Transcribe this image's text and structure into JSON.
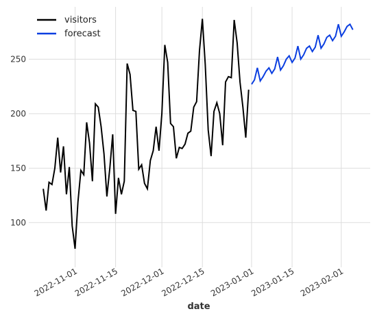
{
  "chart_data": {
    "type": "line",
    "xlabel": "date",
    "series": [
      {
        "name": "visitors",
        "color": "#000000",
        "x": [
          "2022-10-21",
          "2022-10-22",
          "2022-10-23",
          "2022-10-24",
          "2022-10-25",
          "2022-10-26",
          "2022-10-27",
          "2022-10-28",
          "2022-10-29",
          "2022-10-30",
          "2022-10-31",
          "2022-11-01",
          "2022-11-02",
          "2022-11-03",
          "2022-11-04",
          "2022-11-05",
          "2022-11-06",
          "2022-11-07",
          "2022-11-08",
          "2022-11-09",
          "2022-11-10",
          "2022-11-11",
          "2022-11-12",
          "2022-11-13",
          "2022-11-14",
          "2022-11-15",
          "2022-11-16",
          "2022-11-17",
          "2022-11-18",
          "2022-11-19",
          "2022-11-20",
          "2022-11-21",
          "2022-11-22",
          "2022-11-23",
          "2022-11-24",
          "2022-11-25",
          "2022-11-26",
          "2022-11-27",
          "2022-11-28",
          "2022-11-29",
          "2022-11-30",
          "2022-12-01",
          "2022-12-02",
          "2022-12-03",
          "2022-12-04",
          "2022-12-05",
          "2022-12-06",
          "2022-12-07",
          "2022-12-08",
          "2022-12-09",
          "2022-12-10",
          "2022-12-11",
          "2022-12-12",
          "2022-12-13",
          "2022-12-14",
          "2022-12-15",
          "2022-12-16",
          "2022-12-17",
          "2022-12-18",
          "2022-12-19",
          "2022-12-20",
          "2022-12-21",
          "2022-12-22",
          "2022-12-23",
          "2022-12-24",
          "2022-12-25",
          "2022-12-26",
          "2022-12-27",
          "2022-12-28",
          "2022-12-29",
          "2022-12-30",
          "2022-12-31"
        ],
        "values": [
          131,
          111,
          137,
          135,
          150,
          178,
          146,
          170,
          126,
          151,
          97,
          76,
          119,
          148,
          144,
          192,
          173,
          138,
          209,
          206,
          188,
          163,
          124,
          150,
          181,
          108,
          141,
          126,
          138,
          246,
          236,
          203,
          202,
          149,
          153,
          136,
          131,
          157,
          166,
          188,
          166,
          200,
          263,
          247,
          191,
          188,
          159,
          169,
          168,
          172,
          182,
          184,
          206,
          211,
          258,
          287,
          245,
          185,
          161,
          202,
          210,
          200,
          171,
          229,
          234,
          233,
          286,
          265,
          229,
          206,
          178,
          222
        ]
      },
      {
        "name": "forecast",
        "color": "#0a3ee0",
        "x": [
          "2023-01-01",
          "2023-01-02",
          "2023-01-03",
          "2023-01-04",
          "2023-01-05",
          "2023-01-06",
          "2023-01-07",
          "2023-01-08",
          "2023-01-09",
          "2023-01-10",
          "2023-01-11",
          "2023-01-12",
          "2023-01-13",
          "2023-01-14",
          "2023-01-15",
          "2023-01-16",
          "2023-01-17",
          "2023-01-18",
          "2023-01-19",
          "2023-01-20",
          "2023-01-21",
          "2023-01-22",
          "2023-01-23",
          "2023-01-24",
          "2023-01-25",
          "2023-01-26",
          "2023-01-27",
          "2023-01-28",
          "2023-01-29",
          "2023-01-30",
          "2023-01-31",
          "2023-02-01",
          "2023-02-02",
          "2023-02-03",
          "2023-02-04",
          "2023-02-05"
        ],
        "values": [
          227,
          231,
          242,
          230,
          234,
          239,
          242,
          237,
          241,
          252,
          240,
          244,
          250,
          253,
          247,
          251,
          262,
          250,
          254,
          260,
          262,
          257,
          261,
          272,
          260,
          264,
          270,
          272,
          267,
          271,
          282,
          271,
          275,
          280,
          282,
          277
        ]
      }
    ],
    "xlim": [
      "2022-10-16",
      "2023-02-11"
    ],
    "xticks": [
      "2022-11-01",
      "2022-11-15",
      "2022-12-01",
      "2022-12-15",
      "2023-01-01",
      "2023-01-15",
      "2023-02-01"
    ],
    "ylim": [
      59,
      298
    ],
    "yticks": [
      100,
      150,
      200,
      250
    ],
    "grid": true,
    "legend": "upper left"
  }
}
